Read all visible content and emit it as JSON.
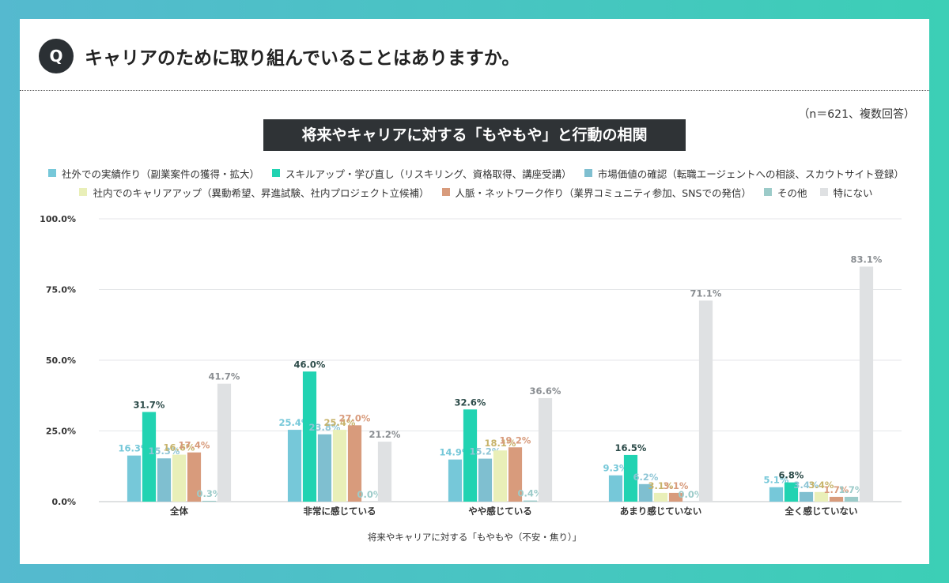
{
  "header": {
    "badge": "Q",
    "question": "キャリアのために取り組んでいることはありますか。",
    "sample_note": "（n＝621、複数回答）"
  },
  "chart_data": {
    "type": "bar",
    "title": "将来やキャリアに対する「もやもや」と行動の相関",
    "xlabel": "将来やキャリアに対する「もやもや（不安・焦り）」",
    "ylabel": "",
    "ylim": [
      0,
      100
    ],
    "y_ticks": [
      "0.0%",
      "25.0%",
      "50.0%",
      "75.0%",
      "100.0%"
    ],
    "y_tick_values": [
      0,
      25,
      50,
      75,
      100
    ],
    "legend_position": "top",
    "grid": true,
    "categories": [
      "全体",
      "非常に感じている",
      "やや感じている",
      "あまり感じていない",
      "全く感じていない"
    ],
    "series": [
      {
        "name": "社外での実績作り（副業案件の獲得・拡大）",
        "color": "#76c8d9",
        "label_color": "#76c8d9",
        "values": [
          16.3,
          25.4,
          14.9,
          9.3,
          5.1
        ]
      },
      {
        "name": "スキルアップ・学び直し（リスキリング、資格取得、講座受講）",
        "color": "#21d3b2",
        "label_color": "#2b4a48",
        "values": [
          31.7,
          46.0,
          32.6,
          16.5,
          6.8
        ]
      },
      {
        "name": "市場価値の確認（転職エージェントへの相談、スカウトサイト登録）",
        "color": "#7fbfd0",
        "label_color": "#8fc6d6",
        "values": [
          15.3,
          23.8,
          15.2,
          6.2,
          3.4
        ]
      },
      {
        "name": "社内でのキャリアアップ（異動希望、昇進試験、社内プロジェクト立候補）",
        "color": "#e9efb8",
        "label_color": "#c7b36a",
        "values": [
          16.6,
          25.4,
          18.1,
          3.1,
          3.4
        ]
      },
      {
        "name": "人脈・ネットワーク作り（業界コミュニティ参加、SNSでの発信）",
        "color": "#d89b7c",
        "label_color": "#d89b7c",
        "values": [
          17.4,
          27.0,
          19.2,
          3.1,
          1.7
        ]
      },
      {
        "name": "その他",
        "color": "#9ccbc9",
        "label_color": "#9ccbc9",
        "values": [
          0.3,
          0.0,
          0.4,
          0.0,
          1.7
        ]
      },
      {
        "name": "特にない",
        "color": "#dfe1e3",
        "label_color": "#8a8e92",
        "values": [
          41.7,
          21.2,
          36.6,
          71.1,
          83.1
        ]
      }
    ]
  }
}
